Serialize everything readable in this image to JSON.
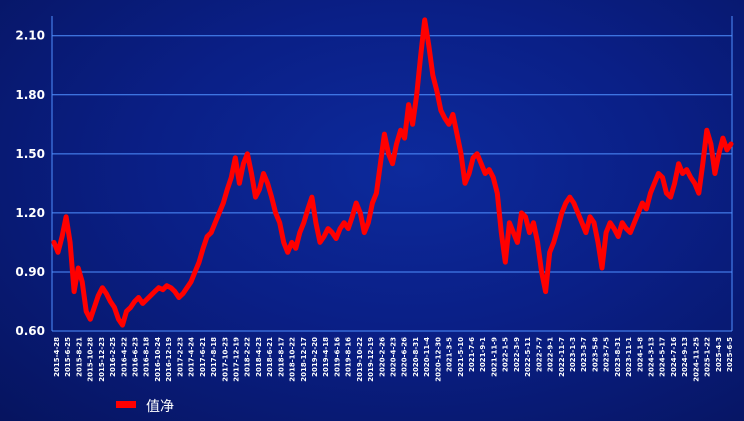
{
  "chart_data": {
    "type": "line",
    "title": "",
    "xlabel": "",
    "ylabel": "",
    "ylim": [
      0.6,
      2.2
    ],
    "y_ticks": [
      "0.60",
      "0.90",
      "1.20",
      "1.50",
      "1.80",
      "2.10"
    ],
    "x_ticks": [
      "2015-4-28",
      "2015-6-25",
      "2015-8-21",
      "2015-10-28",
      "2015-12-23",
      "2016-2-25",
      "2016-4-22",
      "2016-6-23",
      "2016-8-18",
      "2016-10-24",
      "2016-12-19",
      "2017-2-23",
      "2017-4-24",
      "2017-6-21",
      "2017-8-18",
      "2017-10-23",
      "2017-12-19",
      "2018-2-22",
      "2018-4-23",
      "2018-6-21",
      "2018-8-17",
      "2018-10-22",
      "2018-12-17",
      "2019-2-20",
      "2019-4-18",
      "2019-6-16",
      "2019-8-16",
      "2019-10-22",
      "2019-12-19",
      "2020-2-26",
      "2020-4-23",
      "2020-6-26",
      "2020-8-31",
      "2020-11-4",
      "2020-12-30",
      "2021-3-5",
      "2021-5-10",
      "2021-7-6",
      "2021-9-1",
      "2021-11-9",
      "2022-1-5",
      "2022-3-9",
      "2022-5-11",
      "2022-7-7",
      "2022-9-1",
      "2022-11-7",
      "2023-1-3",
      "2023-3-7",
      "2023-5-8",
      "2023-7-5",
      "2023-8-31",
      "2023-11-1",
      "2024-1-8",
      "2024-3-13",
      "2024-5-17",
      "2024-7-16",
      "2024-9-13",
      "2024-11-25",
      "2025-1-22",
      "2025-4-3",
      "2025-6-5"
    ],
    "legend": {
      "position": "bottom-left",
      "entries": [
        "值净"
      ]
    },
    "grid": true,
    "series": [
      {
        "name": "值净",
        "color": "#ff0000",
        "values": [
          1.05,
          1.0,
          1.08,
          1.18,
          1.05,
          0.8,
          0.92,
          0.85,
          0.7,
          0.66,
          0.72,
          0.78,
          0.82,
          0.79,
          0.75,
          0.72,
          0.66,
          0.63,
          0.7,
          0.72,
          0.75,
          0.77,
          0.74,
          0.76,
          0.78,
          0.8,
          0.82,
          0.81,
          0.83,
          0.82,
          0.8,
          0.77,
          0.79,
          0.82,
          0.85,
          0.9,
          0.95,
          1.02,
          1.08,
          1.1,
          1.15,
          1.2,
          1.25,
          1.32,
          1.38,
          1.48,
          1.35,
          1.45,
          1.5,
          1.4,
          1.28,
          1.32,
          1.4,
          1.35,
          1.28,
          1.2,
          1.15,
          1.05,
          1.0,
          1.05,
          1.02,
          1.1,
          1.15,
          1.22,
          1.28,
          1.15,
          1.05,
          1.08,
          1.12,
          1.1,
          1.07,
          1.12,
          1.15,
          1.12,
          1.18,
          1.25,
          1.2,
          1.1,
          1.15,
          1.25,
          1.3,
          1.45,
          1.6,
          1.5,
          1.45,
          1.55,
          1.62,
          1.58,
          1.75,
          1.65,
          1.8,
          2.0,
          2.18,
          2.05,
          1.9,
          1.82,
          1.72,
          1.68,
          1.65,
          1.7,
          1.6,
          1.5,
          1.35,
          1.4,
          1.48,
          1.5,
          1.45,
          1.4,
          1.42,
          1.38,
          1.3,
          1.1,
          0.95,
          1.15,
          1.1,
          1.05,
          1.2,
          1.18,
          1.1,
          1.15,
          1.05,
          0.9,
          0.8,
          1.0,
          1.05,
          1.12,
          1.2,
          1.25,
          1.28,
          1.25,
          1.2,
          1.15,
          1.1,
          1.18,
          1.15,
          1.05,
          0.92,
          1.1,
          1.15,
          1.12,
          1.08,
          1.15,
          1.12,
          1.1,
          1.15,
          1.2,
          1.25,
          1.22,
          1.3,
          1.35,
          1.4,
          1.38,
          1.3,
          1.28,
          1.35,
          1.45,
          1.4,
          1.42,
          1.38,
          1.35,
          1.3,
          1.45,
          1.62,
          1.55,
          1.4,
          1.5,
          1.58,
          1.52,
          1.55
        ]
      }
    ]
  }
}
